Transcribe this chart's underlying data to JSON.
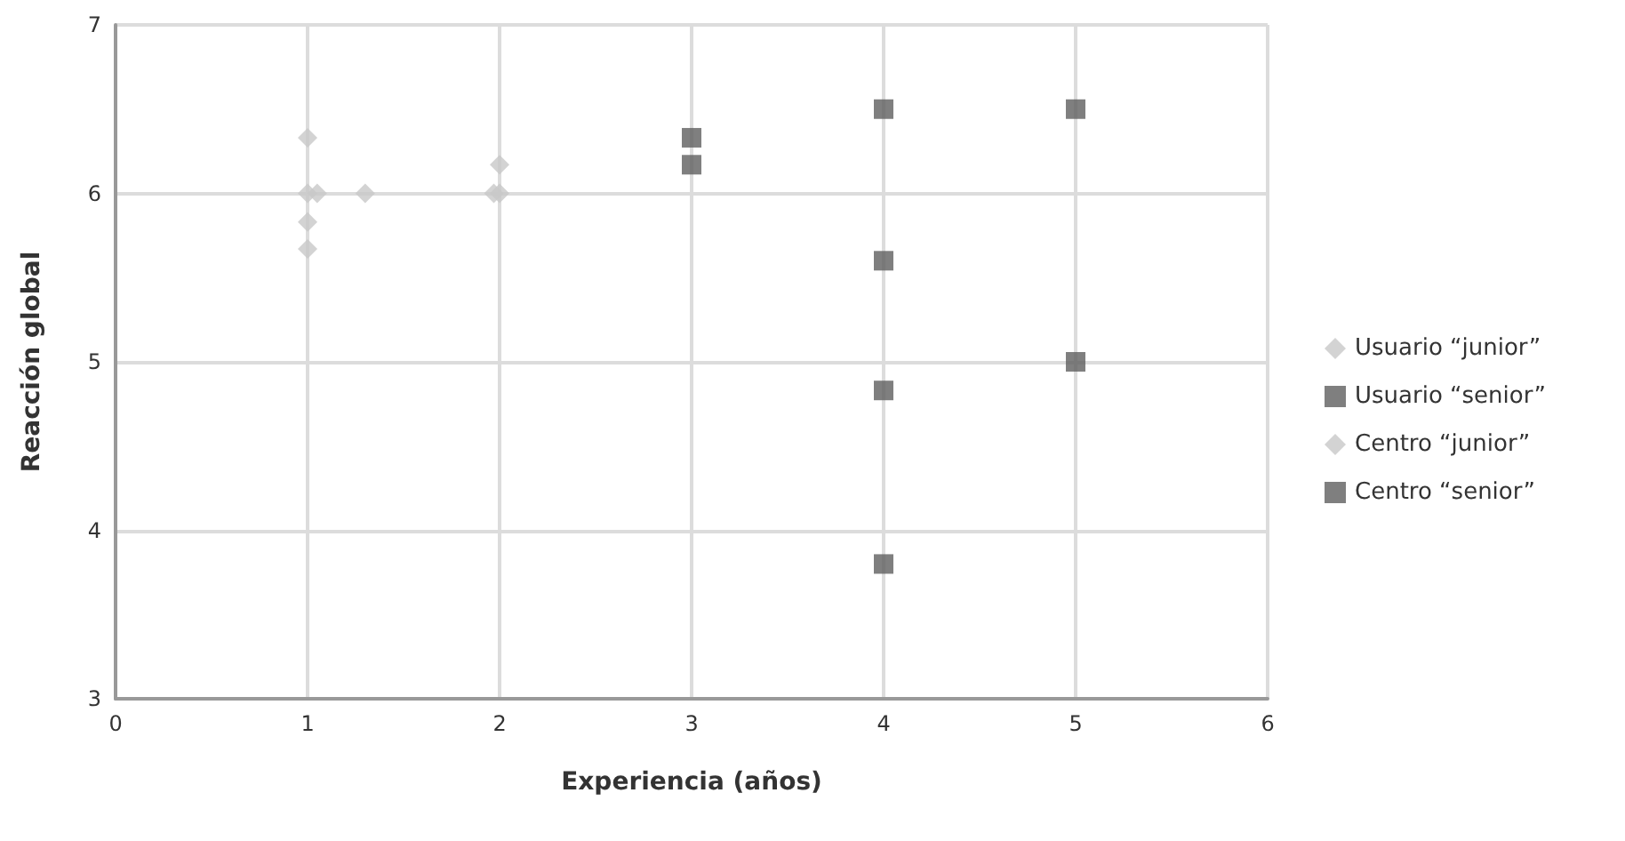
{
  "chart_data": {
    "type": "scatter",
    "xlabel": "Experiencia (años)",
    "ylabel": "Reacción global",
    "xlim": [
      0,
      6
    ],
    "xticks": [
      0,
      1,
      2,
      3,
      4,
      5,
      6
    ],
    "ylim": [
      3,
      7
    ],
    "yticks": [
      3,
      4,
      5,
      6,
      7
    ],
    "grid": true,
    "legend": "right",
    "series": [
      {
        "name": "Usuario “junior”",
        "color": "#c8c8c8",
        "marker": "diamond",
        "x": [
          1,
          1,
          1.05,
          1,
          1,
          2,
          2,
          1.97
        ],
        "values": [
          6.33,
          6,
          6,
          5.83,
          5.67,
          6.17,
          6,
          6
        ]
      },
      {
        "name": "Usuario “senior”",
        "color": "#5f5f5f",
        "marker": "square",
        "x": [
          3,
          3,
          4,
          5,
          4,
          5,
          4
        ],
        "values": [
          6.33,
          6.17,
          6.5,
          6.5,
          4.83,
          5,
          3.8
        ]
      },
      {
        "name": "Centro “junior”",
        "color": "#c8c8c8",
        "marker": "diamond",
        "x": [
          1.3
        ],
        "values": [
          6
        ]
      },
      {
        "name": "Centro “senior”",
        "color": "#5f5f5f",
        "marker": "square",
        "x": [
          4
        ],
        "values": [
          5.6
        ]
      }
    ]
  }
}
